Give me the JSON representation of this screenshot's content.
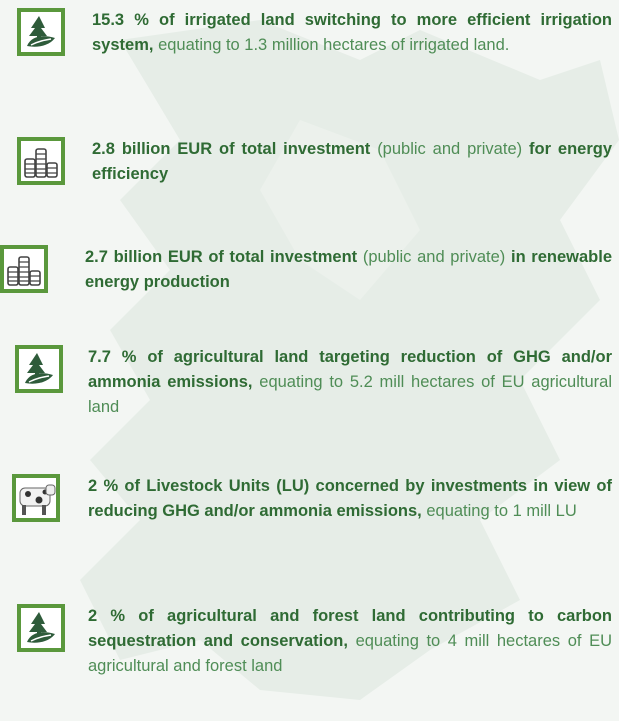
{
  "items": [
    {
      "parts": [
        {
          "text": "15.3 % of irrigated land switching to more efficient irrigation system,",
          "bold": true
        },
        {
          "text": "equating to 1.3 million hectares of irrigated land.",
          "bold": false
        }
      ]
    },
    {
      "parts": [
        {
          "text": "2.8 billion EUR of total investment",
          "bold": true
        },
        {
          "text": "(public and private)",
          "bold": false
        },
        {
          "text": "for energy efficiency",
          "bold": true
        }
      ]
    },
    {
      "parts": [
        {
          "text": "2.7 billion EUR of total investment",
          "bold": true
        },
        {
          "text": "(public and private)",
          "bold": false
        },
        {
          "text": "in renewable energy production",
          "bold": true
        }
      ]
    },
    {
      "parts": [
        {
          "text": "7.7 % of agricultural land targeting reduction of GHG and/or ammonia emissions,",
          "bold": true
        },
        {
          "text": "equating to 5.2 mill hectares of EU agricultural land",
          "bold": false
        }
      ]
    },
    {
      "parts": [
        {
          "text": "2 % of Livestock Units (LU) concerned by investments in view of reducing GHG and/or ammonia emissions,",
          "bold": true
        },
        {
          "text": "equating to 1 mill LU",
          "bold": false
        }
      ]
    },
    {
      "parts": [
        {
          "text": "2 % of agricultural and forest land contributing to carbon sequestration and conservation,",
          "bold": true
        },
        {
          "text": "equating to 4 mill hectares of EU agricultural and forest land",
          "bold": false
        }
      ]
    }
  ]
}
